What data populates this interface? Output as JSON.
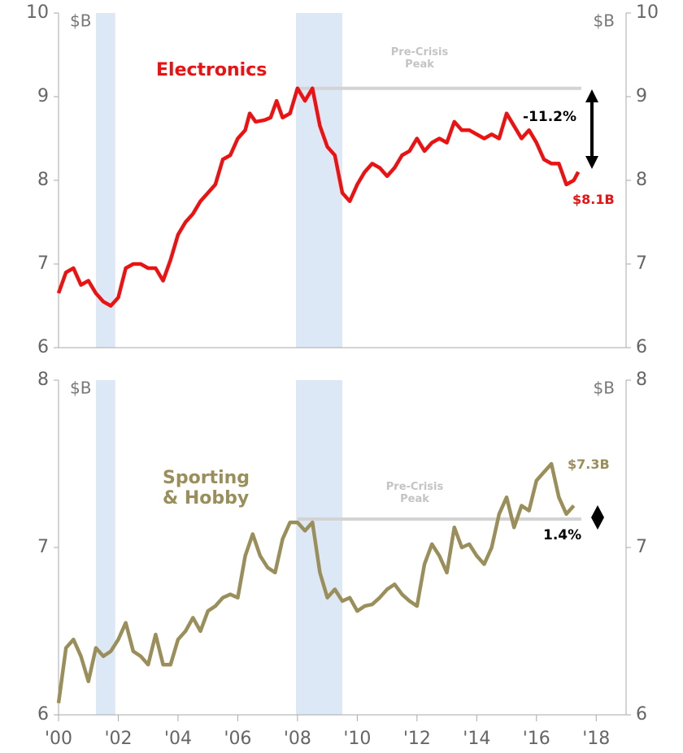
{
  "chart_data": [
    {
      "type": "line",
      "y_unit": "$B",
      "xlim": [
        2000,
        2019
      ],
      "ylim": [
        6,
        10
      ],
      "yticks": [
        6,
        7,
        8,
        9,
        10
      ],
      "shaded_periods": [
        [
          2001.25,
          2001.9
        ],
        [
          2007.95,
          2009.5
        ]
      ],
      "reference_line": {
        "label": "Pre-Crisis Peak",
        "value": 9.1,
        "x": [
          2008,
          2017.5
        ]
      },
      "change_label": "-11.2%",
      "end_label": "$8.1B",
      "x": [
        2000.0,
        2000.25,
        2000.5,
        2000.75,
        2001.0,
        2001.25,
        2001.5,
        2001.75,
        2002.0,
        2002.25,
        2002.5,
        2002.75,
        2003.0,
        2003.25,
        2003.5,
        2003.75,
        2004.0,
        2004.25,
        2004.5,
        2004.75,
        2005.0,
        2005.25,
        2005.5,
        2005.75,
        2006.0,
        2006.25,
        2006.4,
        2006.6,
        2006.9,
        2007.1,
        2007.3,
        2007.5,
        2007.75,
        2008.0,
        2008.25,
        2008.5,
        2008.75,
        2009.0,
        2009.25,
        2009.5,
        2009.75,
        2010.0,
        2010.25,
        2010.5,
        2010.75,
        2011.0,
        2011.25,
        2011.5,
        2011.75,
        2012.0,
        2012.25,
        2012.5,
        2012.75,
        2013.0,
        2013.25,
        2013.5,
        2013.75,
        2014.0,
        2014.25,
        2014.5,
        2014.75,
        2015.0,
        2015.25,
        2015.5,
        2015.75,
        2016.0,
        2016.25,
        2016.5,
        2016.75,
        2017.0,
        2017.25,
        2017.4
      ],
      "series": [
        {
          "name": "Electronics",
          "color": "#ee1111",
          "values": [
            6.65,
            6.9,
            6.95,
            6.75,
            6.8,
            6.65,
            6.55,
            6.5,
            6.6,
            6.95,
            7.0,
            7.0,
            6.95,
            6.95,
            6.8,
            7.05,
            7.35,
            7.5,
            7.6,
            7.75,
            7.85,
            7.95,
            8.25,
            8.3,
            8.5,
            8.6,
            8.8,
            8.7,
            8.72,
            8.75,
            8.95,
            8.75,
            8.8,
            9.1,
            8.95,
            9.1,
            8.65,
            8.4,
            8.3,
            7.85,
            7.75,
            7.95,
            8.1,
            8.2,
            8.15,
            8.05,
            8.15,
            8.3,
            8.35,
            8.5,
            8.35,
            8.45,
            8.5,
            8.45,
            8.7,
            8.6,
            8.6,
            8.55,
            8.5,
            8.55,
            8.5,
            8.8,
            8.65,
            8.5,
            8.6,
            8.45,
            8.25,
            8.2,
            8.2,
            7.95,
            8.0,
            8.1
          ]
        }
      ]
    },
    {
      "type": "line",
      "y_unit": "$B",
      "xlim": [
        2000,
        2019
      ],
      "ylim": [
        6,
        8
      ],
      "yticks": [
        6,
        7,
        8
      ],
      "xticks": [
        {
          "value": 2000,
          "label": "'00"
        },
        {
          "value": 2002,
          "label": "'02"
        },
        {
          "value": 2004,
          "label": "'04"
        },
        {
          "value": 2006,
          "label": "'06"
        },
        {
          "value": 2008,
          "label": "'08"
        },
        {
          "value": 2010,
          "label": "'10"
        },
        {
          "value": 2012,
          "label": "'12"
        },
        {
          "value": 2014,
          "label": "'14"
        },
        {
          "value": 2016,
          "label": "'16"
        },
        {
          "value": 2018,
          "label": "'18"
        }
      ],
      "shaded_periods": [
        [
          2001.25,
          2001.9
        ],
        [
          2007.95,
          2009.5
        ]
      ],
      "reference_line": {
        "label": "Pre-Crisis Peak",
        "value": 7.17,
        "x": [
          2008,
          2017.5
        ]
      },
      "change_label": "1.4%",
      "end_label": "$7.3B",
      "x": [
        2000.0,
        2000.25,
        2000.5,
        2000.75,
        2001.0,
        2001.25,
        2001.5,
        2001.75,
        2002.0,
        2002.25,
        2002.5,
        2002.75,
        2003.0,
        2003.25,
        2003.5,
        2003.75,
        2004.0,
        2004.25,
        2004.5,
        2004.75,
        2005.0,
        2005.25,
        2005.5,
        2005.75,
        2006.0,
        2006.25,
        2006.5,
        2006.75,
        2007.0,
        2007.25,
        2007.5,
        2007.75,
        2008.0,
        2008.25,
        2008.5,
        2008.75,
        2009.0,
        2009.25,
        2009.5,
        2009.75,
        2010.0,
        2010.25,
        2010.5,
        2010.75,
        2011.0,
        2011.25,
        2011.5,
        2011.75,
        2012.0,
        2012.25,
        2012.5,
        2012.75,
        2013.0,
        2013.25,
        2013.5,
        2013.75,
        2014.0,
        2014.25,
        2014.5,
        2014.75,
        2015.0,
        2015.25,
        2015.5,
        2015.75,
        2016.0,
        2016.25,
        2016.5,
        2016.75,
        2017.0,
        2017.25
      ],
      "series": [
        {
          "name": "Sporting & Hobby",
          "color": "#9a8f5a",
          "values": [
            6.07,
            6.4,
            6.45,
            6.35,
            6.2,
            6.4,
            6.35,
            6.38,
            6.45,
            6.55,
            6.38,
            6.35,
            6.3,
            6.48,
            6.3,
            6.3,
            6.45,
            6.5,
            6.58,
            6.5,
            6.62,
            6.65,
            6.7,
            6.72,
            6.7,
            6.95,
            7.08,
            6.95,
            6.88,
            6.85,
            7.05,
            7.15,
            7.15,
            7.1,
            7.15,
            6.85,
            6.7,
            6.75,
            6.68,
            6.7,
            6.62,
            6.65,
            6.66,
            6.7,
            6.75,
            6.78,
            6.72,
            6.68,
            6.65,
            6.9,
            7.02,
            6.95,
            6.85,
            7.12,
            7.0,
            7.02,
            6.95,
            6.9,
            7.0,
            7.2,
            7.3,
            7.12,
            7.25,
            7.22,
            7.4,
            7.45,
            7.5,
            7.3,
            7.2,
            7.25
          ]
        }
      ]
    }
  ]
}
